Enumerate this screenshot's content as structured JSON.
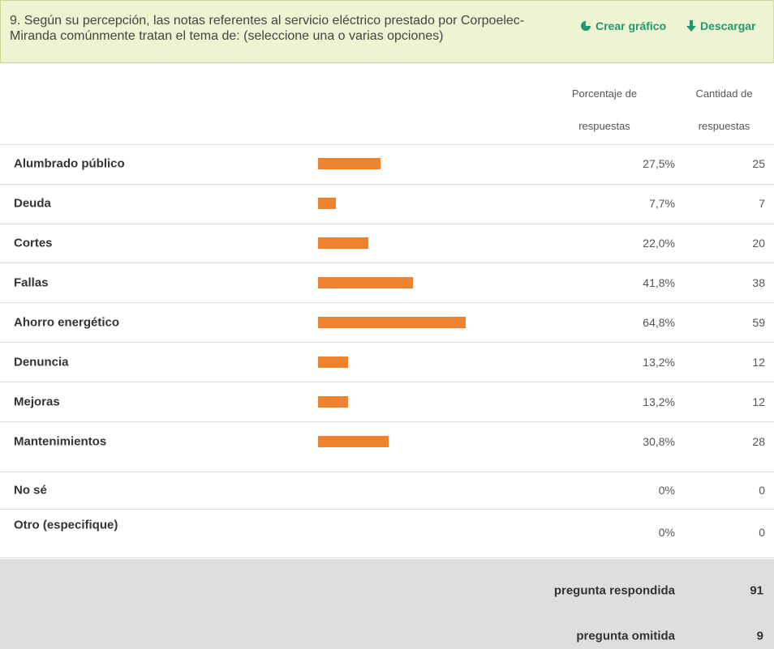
{
  "header": {
    "title": "9. Según su percepción, las notas referentes al servicio eléctrico prestado por Corpoelec-Miranda comúnmente tratan el tema de: (seleccione una o varias opciones)",
    "actions": [
      "Crear gráfico",
      "Descargar"
    ]
  },
  "table": {
    "columns": [
      "Porcentaje de respuestas",
      "Cantidad de respuestas"
    ],
    "rows": [
      {
        "label": "Alumbrado público",
        "percent": 27.5,
        "percent_label": "27,5%",
        "count": 25
      },
      {
        "label": "Deuda",
        "percent": 7.7,
        "percent_label": "7,7%",
        "count": 7
      },
      {
        "label": "Cortes",
        "percent": 22.0,
        "percent_label": "22,0%",
        "count": 20
      },
      {
        "label": "Fallas",
        "percent": 41.8,
        "percent_label": "41,8%",
        "count": 38
      },
      {
        "label": "Ahorro energético",
        "percent": 64.8,
        "percent_label": "64,8%",
        "count": 59
      },
      {
        "label": "Denuncia",
        "percent": 13.2,
        "percent_label": "13,2%",
        "count": 12
      },
      {
        "label": "Mejoras",
        "percent": 13.2,
        "percent_label": "13,2%",
        "count": 12
      },
      {
        "label": "Mantenimientos",
        "percent": 30.8,
        "percent_label": "30,8%",
        "count": 28
      },
      {
        "label": "No sé",
        "percent": 0,
        "percent_label": "0%",
        "count": 0
      },
      {
        "label": "Otro (especifique)",
        "percent": 0,
        "percent_label": "0%",
        "count": 0
      }
    ]
  },
  "summary": [
    {
      "label": "pregunta respondida",
      "value": 91
    },
    {
      "label": "pregunta omitida",
      "value": 9
    }
  ]
}
